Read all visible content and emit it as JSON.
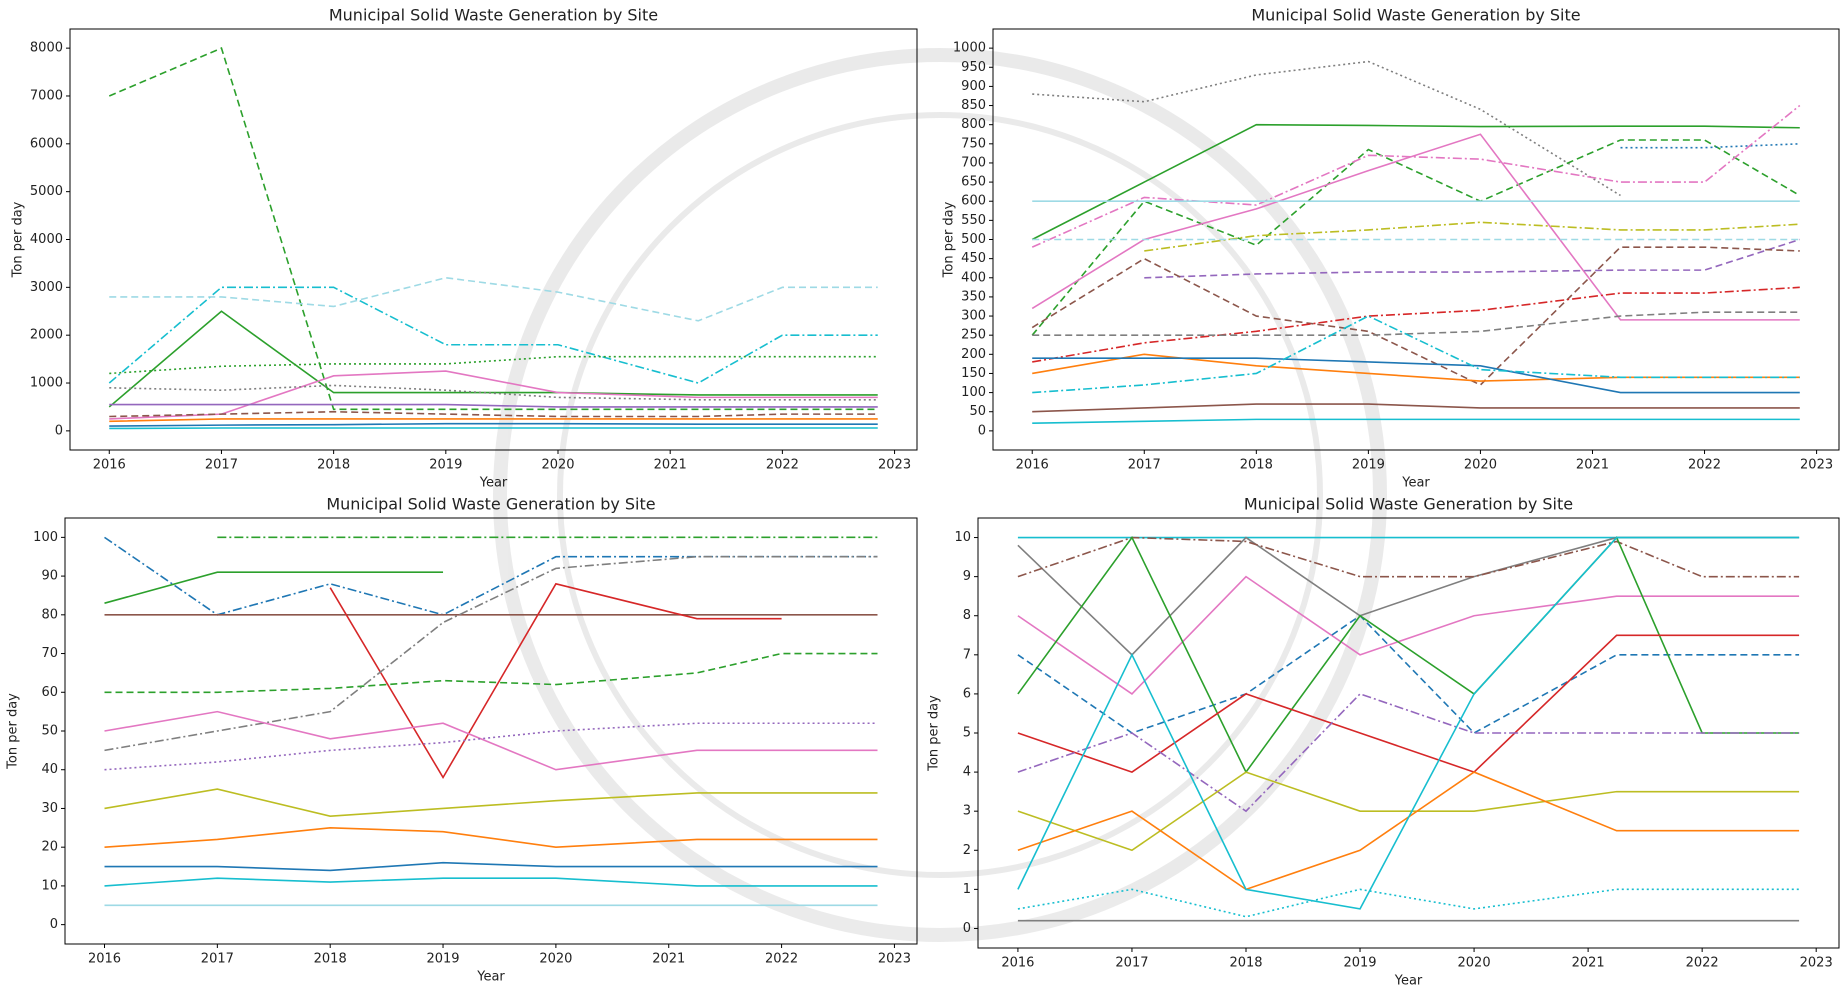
{
  "chart_data": [
    {
      "type": "line",
      "title": "Municipal Solid Waste Generation by Site",
      "x_label": "Year",
      "y_label": "Ton per day",
      "x": [
        2016,
        2017,
        2018,
        2019,
        2020,
        2021.25,
        2022,
        2022.85
      ],
      "xlim": [
        2015.65,
        2023.2
      ],
      "xticks": [
        2016,
        2017,
        2018,
        2019,
        2020,
        2021,
        2022,
        2023
      ],
      "ylim": [
        -400,
        8400
      ],
      "yticks": [
        0,
        1000,
        2000,
        3000,
        4000,
        5000,
        6000,
        7000,
        8000
      ],
      "series": [
        {
          "color": "#2ca02c",
          "dash": "dashed",
          "values": [
            7000,
            8000,
            450,
            450,
            450,
            450,
            450,
            450
          ]
        },
        {
          "color": "#17becf",
          "dash": "dashdot",
          "values": [
            1000,
            3000,
            3000,
            1800,
            1800,
            1000,
            2000,
            2000
          ]
        },
        {
          "color": "#9edae5",
          "dash": "dashed",
          "values": [
            2800,
            2800,
            2600,
            3200,
            2900,
            2300,
            3000,
            3000
          ]
        },
        {
          "color": "#2ca02c",
          "dash": "solid",
          "values": [
            500,
            2500,
            800,
            800,
            800,
            750,
            750,
            750
          ]
        },
        {
          "color": "#2ca02c",
          "dash": "dotted",
          "values": [
            1200,
            1350,
            1400,
            1400,
            1550,
            1550,
            1550,
            1550
          ]
        },
        {
          "color": "#e377c2",
          "dash": "solid",
          "values": [
            250,
            350,
            1150,
            1250,
            800,
            700,
            700,
            700
          ]
        },
        {
          "color": "#7f7f7f",
          "dash": "dotted",
          "values": [
            900,
            850,
            950,
            850,
            700,
            650,
            650,
            650
          ]
        },
        {
          "color": "#9467bd",
          "dash": "solid",
          "values": [
            550,
            550,
            550,
            550,
            500,
            500,
            500,
            500
          ]
        },
        {
          "color": "#8c564b",
          "dash": "dashed",
          "values": [
            300,
            350,
            400,
            350,
            300,
            300,
            350,
            350
          ]
        },
        {
          "color": "#ff7f0e",
          "dash": "solid",
          "values": [
            200,
            250,
            250,
            250,
            250,
            250,
            250,
            250
          ]
        },
        {
          "color": "#1f77b4",
          "dash": "solid",
          "values": [
            100,
            120,
            130,
            150,
            150,
            140,
            140,
            140
          ]
        },
        {
          "color": "#17becf",
          "dash": "solid",
          "values": [
            50,
            60,
            60,
            60,
            60,
            60,
            60,
            60
          ]
        }
      ]
    },
    {
      "type": "line",
      "title": "Municipal Solid Waste Generation by Site",
      "x_label": "Year",
      "y_label": "Ton per day",
      "x": [
        2016,
        2017,
        2018,
        2019,
        2020,
        2021.25,
        2022,
        2022.85
      ],
      "xlim": [
        2015.65,
        2023.2
      ],
      "xticks": [
        2016,
        2017,
        2018,
        2019,
        2020,
        2021,
        2022,
        2023
      ],
      "ylim": [
        -50,
        1050
      ],
      "yticks": [
        0,
        50,
        100,
        150,
        200,
        250,
        300,
        350,
        400,
        450,
        500,
        550,
        600,
        650,
        700,
        750,
        800,
        850,
        900,
        950,
        1000
      ],
      "series": [
        {
          "color": "#7f7f7f",
          "dash": "dotted",
          "values": [
            880,
            860,
            930,
            965,
            840,
            615,
            null,
            null
          ]
        },
        {
          "color": "#2ca02c",
          "dash": "solid",
          "values": [
            500,
            650,
            800,
            798,
            795,
            796,
            796,
            792
          ]
        },
        {
          "color": "#2ca02c",
          "dash": "dashed",
          "values": [
            250,
            600,
            485,
            735,
            600,
            760,
            760,
            615
          ]
        },
        {
          "color": "#1f77b4",
          "dash": "dotted",
          "values": [
            null,
            null,
            null,
            null,
            null,
            740,
            740,
            750
          ]
        },
        {
          "color": "#e377c2",
          "dash": "dashdot",
          "values": [
            480,
            610,
            590,
            720,
            710,
            650,
            650,
            850
          ]
        },
        {
          "color": "#e377c2",
          "dash": "solid",
          "values": [
            320,
            500,
            580,
            680,
            775,
            290,
            290,
            290
          ]
        },
        {
          "color": "#9edae5",
          "dash": "solid",
          "values": [
            600,
            600,
            600,
            600,
            600,
            600,
            600,
            600
          ]
        },
        {
          "color": "#bcbd22",
          "dash": "dashdot",
          "values": [
            null,
            470,
            510,
            525,
            545,
            525,
            525,
            540
          ]
        },
        {
          "color": "#9edae5",
          "dash": "dashed",
          "values": [
            500,
            500,
            500,
            500,
            500,
            500,
            500,
            500
          ]
        },
        {
          "color": "#9467bd",
          "dash": "dashed",
          "values": [
            null,
            400,
            410,
            415,
            415,
            420,
            420,
            500
          ]
        },
        {
          "color": "#8c564b",
          "dash": "dashed",
          "values": [
            270,
            450,
            300,
            260,
            120,
            480,
            480,
            470
          ]
        },
        {
          "color": "#d62728",
          "dash": "dashdot",
          "values": [
            180,
            230,
            260,
            300,
            315,
            360,
            360,
            375
          ]
        },
        {
          "color": "#7f7f7f",
          "dash": "dashed",
          "values": [
            250,
            250,
            250,
            250,
            260,
            300,
            310,
            310
          ]
        },
        {
          "color": "#ff7f0e",
          "dash": "solid",
          "values": [
            150,
            200,
            170,
            150,
            130,
            140,
            140,
            140
          ]
        },
        {
          "color": "#1f77b4",
          "dash": "solid",
          "values": [
            190,
            190,
            190,
            180,
            170,
            100,
            100,
            100
          ]
        },
        {
          "color": "#17becf",
          "dash": "dashdot",
          "values": [
            100,
            120,
            150,
            300,
            160,
            140,
            140,
            140
          ]
        },
        {
          "color": "#8c564b",
          "dash": "solid",
          "values": [
            50,
            60,
            70,
            70,
            60,
            60,
            60,
            60
          ]
        },
        {
          "color": "#17becf",
          "dash": "solid",
          "values": [
            20,
            25,
            30,
            30,
            30,
            30,
            30,
            30
          ]
        }
      ]
    },
    {
      "type": "line",
      "title": "Municipal Solid Waste Generation by Site",
      "x_label": "Year",
      "y_label": "Ton per day",
      "x": [
        2016,
        2017,
        2018,
        2019,
        2020,
        2021.25,
        2022,
        2022.85
      ],
      "xlim": [
        2015.65,
        2023.2
      ],
      "xticks": [
        2016,
        2017,
        2018,
        2019,
        2020,
        2021,
        2022,
        2023
      ],
      "ylim": [
        -5,
        105
      ],
      "yticks": [
        0,
        10,
        20,
        30,
        40,
        50,
        60,
        70,
        80,
        90,
        100
      ],
      "series": [
        {
          "color": "#2ca02c",
          "dash": "solid",
          "values": [
            83,
            91,
            91,
            91,
            null,
            null,
            null,
            null
          ]
        },
        {
          "color": "#2ca02c",
          "dash": "dashdot",
          "values": [
            null,
            100,
            100,
            100,
            100,
            100,
            100,
            100
          ]
        },
        {
          "color": "#1f77b4",
          "dash": "dashdot",
          "values": [
            100,
            80,
            88,
            80,
            95,
            95,
            95,
            95
          ]
        },
        {
          "color": "#8c564b",
          "dash": "solid",
          "values": [
            80,
            80,
            80,
            80,
            80,
            80,
            80,
            80
          ]
        },
        {
          "color": "#d62728",
          "dash": "solid",
          "values": [
            null,
            null,
            87,
            38,
            88,
            79,
            79,
            null
          ]
        },
        {
          "color": "#2ca02c",
          "dash": "dashed",
          "values": [
            60,
            60,
            61,
            63,
            62,
            65,
            70,
            70
          ]
        },
        {
          "color": "#7f7f7f",
          "dash": "dashdot",
          "values": [
            45,
            50,
            55,
            78,
            92,
            95,
            95,
            95
          ]
        },
        {
          "color": "#e377c2",
          "dash": "solid",
          "values": [
            50,
            55,
            48,
            52,
            40,
            45,
            45,
            45
          ]
        },
        {
          "color": "#9467bd",
          "dash": "dotted",
          "values": [
            40,
            42,
            45,
            47,
            50,
            52,
            52,
            52
          ]
        },
        {
          "color": "#bcbd22",
          "dash": "solid",
          "values": [
            30,
            35,
            28,
            30,
            32,
            34,
            34,
            34
          ]
        },
        {
          "color": "#ff7f0e",
          "dash": "solid",
          "values": [
            20,
            22,
            25,
            24,
            20,
            22,
            22,
            22
          ]
        },
        {
          "color": "#1f77b4",
          "dash": "solid",
          "values": [
            15,
            15,
            14,
            16,
            15,
            15,
            15,
            15
          ]
        },
        {
          "color": "#17becf",
          "dash": "solid",
          "values": [
            10,
            12,
            11,
            12,
            12,
            10,
            10,
            10
          ]
        },
        {
          "color": "#9edae5",
          "dash": "solid",
          "values": [
            5,
            5,
            5,
            5,
            5,
            5,
            5,
            5
          ]
        }
      ]
    },
    {
      "type": "line",
      "title": "Municipal Solid Waste Generation by Site",
      "x_label": "Year",
      "y_label": "Ton per day",
      "x": [
        2016,
        2017,
        2018,
        2019,
        2020,
        2021.25,
        2022,
        2022.85
      ],
      "xlim": [
        2015.65,
        2023.2
      ],
      "xticks": [
        2016,
        2017,
        2018,
        2019,
        2020,
        2021,
        2022,
        2023
      ],
      "ylim": [
        -0.5,
        10.5
      ],
      "yticks": [
        0,
        1,
        2,
        3,
        4,
        5,
        6,
        7,
        8,
        9,
        10
      ],
      "series": [
        {
          "color": "#17becf",
          "dash": "solid",
          "values": [
            10,
            10,
            10,
            10,
            10,
            10,
            10,
            10
          ]
        },
        {
          "color": "#7f7f7f",
          "dash": "solid",
          "values": [
            9.8,
            7,
            10,
            8,
            9,
            10,
            10,
            10
          ]
        },
        {
          "color": "#8c564b",
          "dash": "dashdot",
          "values": [
            9,
            10,
            9.9,
            9,
            9,
            9.9,
            9,
            9
          ]
        },
        {
          "color": "#e377c2",
          "dash": "solid",
          "values": [
            8,
            6,
            9,
            7,
            8,
            8.5,
            8.5,
            8.5
          ]
        },
        {
          "color": "#1f77b4",
          "dash": "dashed",
          "values": [
            7,
            5,
            6,
            8,
            5,
            7,
            7,
            7
          ]
        },
        {
          "color": "#2ca02c",
          "dash": "solid",
          "values": [
            6,
            10,
            4,
            8,
            6,
            10,
            5,
            5
          ]
        },
        {
          "color": "#d62728",
          "dash": "solid",
          "values": [
            5,
            4,
            6,
            5,
            4,
            7.5,
            7.5,
            7.5
          ]
        },
        {
          "color": "#9467bd",
          "dash": "dashdot",
          "values": [
            4,
            5,
            3,
            6,
            5,
            5,
            5,
            5
          ]
        },
        {
          "color": "#bcbd22",
          "dash": "solid",
          "values": [
            3,
            2,
            4,
            3,
            3,
            3.5,
            3.5,
            3.5
          ]
        },
        {
          "color": "#ff7f0e",
          "dash": "solid",
          "values": [
            2,
            3,
            1,
            2,
            4,
            2.5,
            2.5,
            2.5
          ]
        },
        {
          "color": "#17becf",
          "dash": "solid",
          "values": [
            1,
            7,
            1,
            0.5,
            6,
            10,
            10,
            10
          ]
        },
        {
          "color": "#17becf",
          "dash": "dotted",
          "values": [
            0.5,
            1,
            0.3,
            1,
            0.5,
            1,
            1,
            1
          ]
        },
        {
          "color": "#7f7f7f",
          "dash": "solid",
          "values": [
            0.2,
            0.2,
            0.2,
            0.2,
            0.2,
            0.2,
            0.2,
            0.2
          ]
        }
      ]
    }
  ]
}
